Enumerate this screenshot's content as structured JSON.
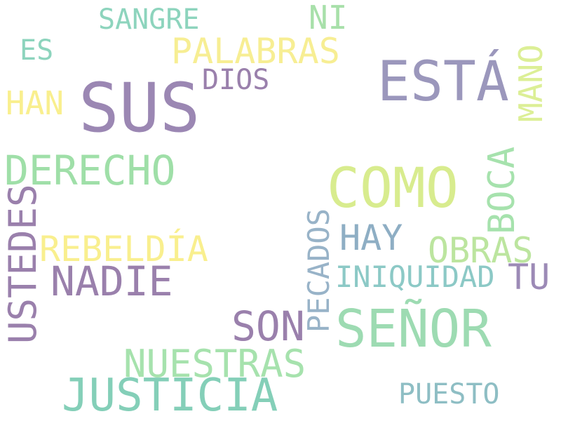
{
  "words": {
    "sus": {
      "text": "SUS",
      "color": "#9b87b3"
    },
    "esta": {
      "text": "ESTÁ",
      "color": "#9b97bc"
    },
    "como": {
      "text": "COMO",
      "color": "#d8ec8e"
    },
    "senor": {
      "text": "SEÑOR",
      "color": "#9ddbb2"
    },
    "justicia": {
      "text": "JUSTICIA",
      "color": "#84cfb8"
    },
    "derecho": {
      "text": "DERECHO",
      "color": "#9fdfa8"
    },
    "nadie": {
      "text": "NADIE",
      "color": "#9a80ac"
    },
    "son": {
      "text": "SON",
      "color": "#9a80ac"
    },
    "nuestras": {
      "text": "NUESTRAS",
      "color": "#a6e2ad"
    },
    "rebeldia": {
      "text": "REBELDÍA",
      "color": "#f9ef8e"
    },
    "palabras": {
      "text": "PALABRAS",
      "color": "#f7ee93"
    },
    "obras": {
      "text": "OBRAS",
      "color": "#bce59f"
    },
    "hay": {
      "text": "HAY",
      "color": "#8eaec4"
    },
    "tu": {
      "text": "TU",
      "color": "#9c8ab6"
    },
    "han": {
      "text": "HAN",
      "color": "#f9ef8e"
    },
    "ni": {
      "text": "NI",
      "color": "#a8e0aa"
    },
    "iniquidad": {
      "text": "INIQUIDAD",
      "color": "#8cc9c6"
    },
    "sangre": {
      "text": "SANGRE",
      "color": "#8dd4bd"
    },
    "puesto": {
      "text": "PUESTO",
      "color": "#8ebec4"
    },
    "dios": {
      "text": "DIOS",
      "color": "#9a80ac"
    },
    "es": {
      "text": "ES",
      "color": "#8dd4bd"
    },
    "ustedes": {
      "text": "USTEDES",
      "color": "#9a80ac"
    },
    "boca": {
      "text": "BOCA",
      "color": "#a6e2ad"
    },
    "mano": {
      "text": "MANO",
      "color": "#dcef96"
    },
    "pecados": {
      "text": "PECADOS",
      "color": "#98b3c8"
    }
  }
}
